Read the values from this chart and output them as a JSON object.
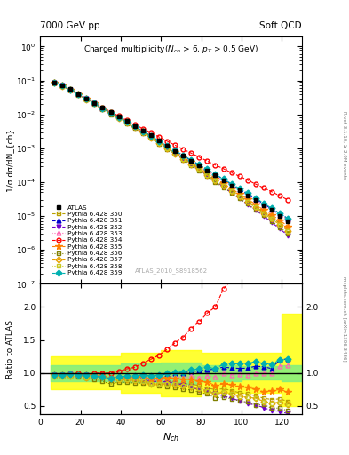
{
  "title_left": "7000 GeV pp",
  "title_right": "Soft QCD",
  "right_label": "Rivet 3.1.10, ≥ 2.9M events",
  "arxiv_label": "mcplots.cern.ch [arXiv:1306.3436]",
  "watermark": "ATLAS_2010_S8918562",
  "ylabel_main": "1/σ dσ/dN_{ch}",
  "ylabel_ratio": "Ratio to ATLAS",
  "xlabel": "N_{ch}",
  "xlim": [
    0,
    130
  ],
  "ylim_main": [
    1e-07,
    2.0
  ],
  "ylim_ratio": [
    0.38,
    2.35
  ],
  "atlas_x": [
    7,
    11,
    15,
    19,
    23,
    27,
    31,
    35,
    39,
    43,
    47,
    51,
    55,
    59,
    63,
    67,
    71,
    75,
    79,
    83,
    87,
    91,
    95,
    99,
    103,
    107,
    111,
    115,
    119,
    123
  ],
  "atlas_y": [
    0.088,
    0.072,
    0.055,
    0.04,
    0.03,
    0.022,
    0.016,
    0.012,
    0.0088,
    0.0063,
    0.0046,
    0.0033,
    0.0024,
    0.0017,
    0.0012,
    0.00085,
    0.00061,
    0.00043,
    0.00031,
    0.00022,
    0.00016,
    0.00011,
    7.9e-05,
    5.7e-05,
    4.1e-05,
    2.9e-05,
    2.1e-05,
    1.5e-05,
    1e-05,
    7e-06
  ],
  "series": [
    {
      "label": "Pythia 6.428 350",
      "color": "#b8a000",
      "linestyle": "--",
      "marker": "s",
      "markerfilled": false,
      "x": [
        7,
        11,
        15,
        19,
        23,
        27,
        31,
        35,
        39,
        43,
        47,
        51,
        55,
        59,
        63,
        67,
        71,
        75,
        79,
        83,
        87,
        91,
        95,
        99,
        103,
        107,
        111,
        115,
        119,
        123
      ],
      "y": [
        0.084,
        0.069,
        0.053,
        0.039,
        0.028,
        0.021,
        0.015,
        0.011,
        0.008,
        0.0057,
        0.0041,
        0.0029,
        0.0021,
        0.00148,
        0.00104,
        0.00073,
        0.00051,
        0.00036,
        0.00025,
        0.00017,
        0.00012,
        8.4e-05,
        5.8e-05,
        4e-05,
        2.8e-05,
        1.9e-05,
        1.3e-05,
        9e-06,
        6.1e-06,
        4e-06
      ]
    },
    {
      "label": "Pythia 6.428 351",
      "color": "#0000cc",
      "linestyle": "--",
      "marker": "^",
      "markerfilled": true,
      "x": [
        7,
        11,
        15,
        19,
        23,
        27,
        31,
        35,
        39,
        43,
        47,
        51,
        55,
        59,
        63,
        67,
        71,
        75,
        79,
        83,
        87,
        91,
        95,
        99,
        103,
        107,
        111,
        115,
        119,
        123
      ],
      "y": [
        0.085,
        0.07,
        0.054,
        0.039,
        0.029,
        0.021,
        0.015,
        0.011,
        0.0083,
        0.006,
        0.0044,
        0.0032,
        0.0023,
        0.00164,
        0.00118,
        0.00085,
        0.00061,
        0.00044,
        0.00032,
        0.00023,
        0.00017,
        0.00012,
        8.5e-05,
        6.1e-05,
        4.4e-05,
        3.2e-05,
        2.3e-05,
        1.6e-05,
        1.2e-05,
        8.5e-06
      ]
    },
    {
      "label": "Pythia 6.428 352",
      "color": "#7000cc",
      "linestyle": "--",
      "marker": "v",
      "markerfilled": true,
      "x": [
        7,
        11,
        15,
        19,
        23,
        27,
        31,
        35,
        39,
        43,
        47,
        51,
        55,
        59,
        63,
        67,
        71,
        75,
        79,
        83,
        87,
        91,
        95,
        99,
        103,
        107,
        111,
        115,
        119,
        123
      ],
      "y": [
        0.085,
        0.07,
        0.054,
        0.039,
        0.029,
        0.021,
        0.015,
        0.011,
        0.0082,
        0.0059,
        0.0042,
        0.003,
        0.0021,
        0.00148,
        0.00104,
        0.00072,
        0.0005,
        0.00034,
        0.00023,
        0.00016,
        0.00011,
        7.2e-05,
        4.9e-05,
        3.3e-05,
        2.2e-05,
        1.5e-05,
        1e-05,
        6.5e-06,
        4.2e-06,
        2.7e-06
      ]
    },
    {
      "label": "Pythia 6.428 353",
      "color": "#ff69b4",
      "linestyle": ":",
      "marker": "^",
      "markerfilled": false,
      "x": [
        7,
        11,
        15,
        19,
        23,
        27,
        31,
        35,
        39,
        43,
        47,
        51,
        55,
        59,
        63,
        67,
        71,
        75,
        79,
        83,
        87,
        91,
        95,
        99,
        103,
        107,
        111,
        115,
        119,
        123
      ],
      "y": [
        0.085,
        0.07,
        0.054,
        0.039,
        0.029,
        0.021,
        0.015,
        0.011,
        0.0082,
        0.0059,
        0.0043,
        0.0031,
        0.0022,
        0.00158,
        0.00113,
        0.0008,
        0.00057,
        0.00041,
        0.00029,
        0.00021,
        0.00015,
        0.00011,
        7.7e-05,
        5.6e-05,
        4e-05,
        2.9e-05,
        2.1e-05,
        1.5e-05,
        1.1e-05,
        7.8e-06
      ]
    },
    {
      "label": "Pythia 6.428 354",
      "color": "#ff0000",
      "linestyle": "--",
      "marker": "o",
      "markerfilled": false,
      "x": [
        7,
        11,
        15,
        19,
        23,
        27,
        31,
        35,
        39,
        43,
        47,
        51,
        55,
        59,
        63,
        67,
        71,
        75,
        79,
        83,
        87,
        91,
        95,
        99,
        103,
        107,
        111,
        115,
        119,
        123
      ],
      "y": [
        0.085,
        0.07,
        0.054,
        0.04,
        0.029,
        0.022,
        0.016,
        0.012,
        0.009,
        0.0067,
        0.005,
        0.0038,
        0.0029,
        0.00216,
        0.00163,
        0.00124,
        0.00094,
        0.00072,
        0.00055,
        0.00042,
        0.00032,
        0.00025,
        0.00019,
        0.00015,
        0.000115,
        8.8e-05,
        6.8e-05,
        5.2e-05,
        4e-05,
        3e-05
      ]
    },
    {
      "label": "Pythia 6.428 355",
      "color": "#ff8000",
      "linestyle": "--",
      "marker": "*",
      "markerfilled": true,
      "x": [
        7,
        11,
        15,
        19,
        23,
        27,
        31,
        35,
        39,
        43,
        47,
        51,
        55,
        59,
        63,
        67,
        71,
        75,
        79,
        83,
        87,
        91,
        95,
        99,
        103,
        107,
        111,
        115,
        119,
        123
      ],
      "y": [
        0.085,
        0.07,
        0.054,
        0.039,
        0.029,
        0.021,
        0.015,
        0.011,
        0.0082,
        0.0059,
        0.0043,
        0.0031,
        0.0022,
        0.00156,
        0.00111,
        0.00078,
        0.00055,
        0.00039,
        0.00027,
        0.00019,
        0.00013,
        9.2e-05,
        6.5e-05,
        4.5e-05,
        3.2e-05,
        2.2e-05,
        1.5e-05,
        1.1e-05,
        7.5e-06,
        5e-06
      ]
    },
    {
      "label": "Pythia 6.428 356",
      "color": "#808000",
      "linestyle": ":",
      "marker": "s",
      "markerfilled": false,
      "x": [
        7,
        11,
        15,
        19,
        23,
        27,
        31,
        35,
        39,
        43,
        47,
        51,
        55,
        59,
        63,
        67,
        71,
        75,
        79,
        83,
        87,
        91,
        95,
        99,
        103,
        107,
        111,
        115,
        119,
        123
      ],
      "y": [
        0.084,
        0.069,
        0.053,
        0.038,
        0.028,
        0.02,
        0.014,
        0.01,
        0.0076,
        0.0054,
        0.0039,
        0.0028,
        0.002,
        0.00138,
        0.00096,
        0.00067,
        0.00046,
        0.00032,
        0.00022,
        0.00015,
        0.0001,
        7e-05,
        4.8e-05,
        3.3e-05,
        2.3e-05,
        1.5e-05,
        1.1e-05,
        7e-06,
        4.7e-06,
        3e-06
      ]
    },
    {
      "label": "Pythia 6.428 357",
      "color": "#e8a000",
      "linestyle": "--",
      "marker": "D",
      "markerfilled": false,
      "x": [
        7,
        11,
        15,
        19,
        23,
        27,
        31,
        35,
        39,
        43,
        47,
        51,
        55,
        59,
        63,
        67,
        71,
        75,
        79,
        83,
        87,
        91,
        95,
        99,
        103,
        107,
        111,
        115,
        119,
        123
      ],
      "y": [
        0.084,
        0.069,
        0.053,
        0.039,
        0.028,
        0.021,
        0.015,
        0.011,
        0.0079,
        0.0057,
        0.0041,
        0.0029,
        0.002,
        0.00143,
        0.001,
        0.0007,
        0.00049,
        0.00034,
        0.00024,
        0.00016,
        0.00011,
        7.8e-05,
        5.4e-05,
        3.7e-05,
        2.6e-05,
        1.8e-05,
        1.2e-05,
        8.2e-06,
        5.6e-06,
        3.7e-06
      ]
    },
    {
      "label": "Pythia 6.428 358",
      "color": "#c8c820",
      "linestyle": ":",
      "marker": "s",
      "markerfilled": false,
      "x": [
        7,
        11,
        15,
        19,
        23,
        27,
        31,
        35,
        39,
        43,
        47,
        51,
        55,
        59,
        63,
        67,
        71,
        75,
        79,
        83,
        87,
        91,
        95,
        99,
        103,
        107,
        111,
        115,
        119,
        123
      ],
      "y": [
        0.084,
        0.069,
        0.053,
        0.039,
        0.028,
        0.021,
        0.015,
        0.011,
        0.0079,
        0.0057,
        0.0041,
        0.0029,
        0.002,
        0.00143,
        0.00101,
        0.00071,
        0.00049,
        0.00034,
        0.00024,
        0.00016,
        0.00011,
        7.9e-05,
        5.4e-05,
        3.7e-05,
        2.6e-05,
        1.8e-05,
        1.2e-05,
        8.2e-06,
        5.6e-06,
        3.7e-06
      ]
    },
    {
      "label": "Pythia 6.428 359",
      "color": "#00b0b0",
      "linestyle": "--",
      "marker": "D",
      "markerfilled": true,
      "x": [
        7,
        11,
        15,
        19,
        23,
        27,
        31,
        35,
        39,
        43,
        47,
        51,
        55,
        59,
        63,
        67,
        71,
        75,
        79,
        83,
        87,
        91,
        95,
        99,
        103,
        107,
        111,
        115,
        119,
        123
      ],
      "y": [
        0.085,
        0.07,
        0.054,
        0.039,
        0.029,
        0.021,
        0.015,
        0.011,
        0.0083,
        0.006,
        0.0044,
        0.0032,
        0.0023,
        0.00165,
        0.00119,
        0.00086,
        0.00062,
        0.00045,
        0.00033,
        0.00024,
        0.00017,
        0.000125,
        9e-05,
        6.5e-05,
        4.7e-05,
        3.4e-05,
        2.4e-05,
        1.7e-05,
        1.2e-05,
        8.5e-06
      ]
    }
  ],
  "band_yellow_xedges": [
    5,
    20,
    40,
    60,
    80,
    100,
    120,
    130
  ],
  "band_yellow_ylo": [
    0.75,
    0.75,
    0.7,
    0.65,
    0.7,
    0.7,
    0.5,
    0.5
  ],
  "band_yellow_yhi": [
    1.25,
    1.25,
    1.3,
    1.35,
    1.3,
    1.3,
    1.9,
    1.9
  ],
  "band_green_xedges": [
    5,
    20,
    40,
    60,
    80,
    100,
    120,
    130
  ],
  "band_green_ylo": [
    0.88,
    0.88,
    0.86,
    0.84,
    0.88,
    0.9,
    0.88,
    0.88
  ],
  "band_green_yhi": [
    1.12,
    1.12,
    1.14,
    1.16,
    1.12,
    1.1,
    1.12,
    1.12
  ]
}
